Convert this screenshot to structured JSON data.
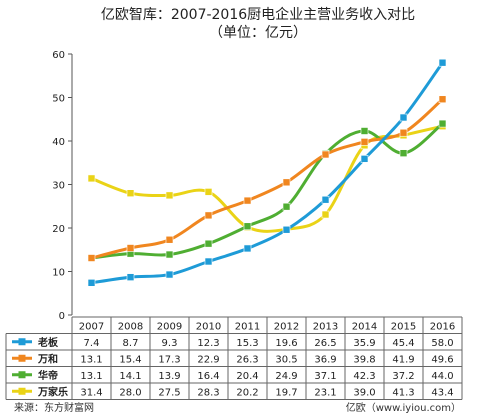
{
  "title": "亿欧智库：2007-2016厨电企业主营业务收入对比",
  "subtitle": "（单位：亿元）",
  "source": "来源：东方财富网",
  "site": "亿欧（www.iyiou.com）",
  "chart_data": {
    "type": "line",
    "categories": [
      "2007",
      "2008",
      "2009",
      "2010",
      "2011",
      "2012",
      "2013",
      "2014",
      "2015",
      "2016"
    ],
    "ylim": [
      0,
      60
    ],
    "yticks": [
      0,
      10,
      20,
      30,
      40,
      50,
      60
    ],
    "grid": false,
    "legend": "data-table-left",
    "series": [
      {
        "name": "老板",
        "color": "#1e9bd7",
        "labels": [
          "7.4",
          "8.7",
          "9.3",
          "12.3",
          "15.3",
          "19.6",
          "26.5",
          "35.9",
          "45.4",
          "58.0"
        ],
        "values": [
          7.4,
          8.7,
          9.3,
          12.3,
          15.3,
          19.6,
          26.5,
          35.9,
          45.4,
          58.0
        ]
      },
      {
        "name": "万和",
        "color": "#f0861f",
        "labels": [
          "13.1",
          "15.4",
          "17.3",
          "22.9",
          "26.3",
          "30.5",
          "36.9",
          "39.8",
          "41.9",
          "49.6"
        ],
        "values": [
          13.1,
          15.4,
          17.3,
          22.9,
          26.3,
          30.5,
          36.9,
          39.8,
          41.9,
          49.6
        ]
      },
      {
        "name": "华帝",
        "color": "#4fae32",
        "labels": [
          "13.1",
          "14.1",
          "13.9",
          "16.4",
          "20.4",
          "24.9",
          "37.1",
          "42.3",
          "37.2",
          "44.0"
        ],
        "values": [
          13.1,
          14.1,
          13.9,
          16.4,
          20.4,
          24.9,
          37.1,
          42.3,
          37.2,
          44.0
        ]
      },
      {
        "name": "万家乐",
        "color": "#ead316",
        "labels": [
          "31.4",
          "28.0",
          "27.5",
          "28.3",
          "20.2",
          "19.7",
          "23.1",
          "39.0",
          "41.3",
          "43.4"
        ],
        "values": [
          31.4,
          28.0,
          27.5,
          28.3,
          20.2,
          19.7,
          23.1,
          39.0,
          41.3,
          43.4
        ]
      }
    ]
  }
}
